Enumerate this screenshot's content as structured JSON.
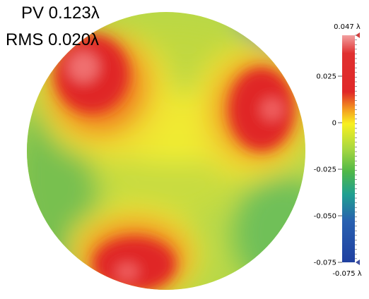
{
  "stats": {
    "pv": "PV 0.123λ",
    "rms": "RMS 0.020λ"
  },
  "colorbar": {
    "max_label": "0.047 λ",
    "min_label": "-0.075 λ",
    "ticks": [
      "0.025",
      "0",
      "-0.025",
      "-0.050",
      "-0.075"
    ]
  }
}
